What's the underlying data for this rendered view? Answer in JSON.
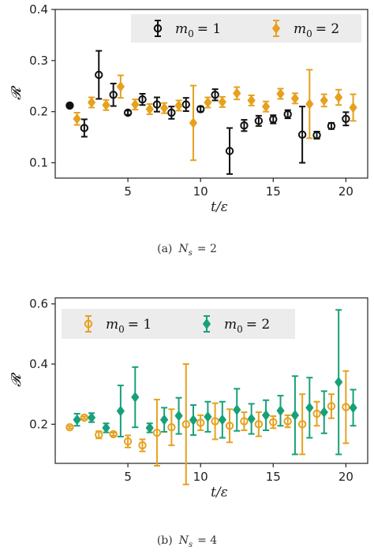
{
  "colors": {
    "black": "#111111",
    "orange": "#e6a11f",
    "green": "#17a07a",
    "axis": "#222222",
    "legend_bg": "#ececec"
  },
  "chart_data": [
    {
      "type": "scatter",
      "caption": "(a)  N_s = 2",
      "caption_prefix": "(a)",
      "caption_var": "N",
      "caption_sub": "s",
      "caption_rest": "= 2",
      "xlabel": "t/ε",
      "ylabel": "𝓡",
      "xlim": [
        0,
        21.5
      ],
      "ylim": [
        0.07,
        0.4
      ],
      "xticks": [
        5,
        10,
        15,
        20
      ],
      "yticks": [
        0.1,
        0.2,
        0.3,
        0.4
      ],
      "ytick_labels": [
        "0.1",
        "0.2",
        "0.3",
        "0.4"
      ],
      "legend_position": "top-right",
      "series": [
        {
          "name": "m₀ = 1",
          "name_sym": "m",
          "name_sub": "0",
          "name_rest": "= 1",
          "color": "#111111",
          "marker": "circle",
          "x": [
            1,
            2,
            3,
            4,
            5,
            6,
            7,
            8,
            9,
            10,
            11,
            12,
            13,
            14,
            15,
            16,
            17,
            18,
            19,
            20
          ],
          "y": [
            0.212,
            0.168,
            0.272,
            0.233,
            0.198,
            0.224,
            0.214,
            0.198,
            0.214,
            0.205,
            0.233,
            0.123,
            0.173,
            0.182,
            0.185,
            0.195,
            0.155,
            0.154,
            0.172,
            0.186
          ],
          "err": [
            0.0,
            0.017,
            0.047,
            0.022,
            0.004,
            0.011,
            0.014,
            0.012,
            0.013,
            0.005,
            0.011,
            0.045,
            0.011,
            0.01,
            0.008,
            0.008,
            0.055,
            0.007,
            0.006,
            0.013
          ]
        },
        {
          "name": "m₀ = 2",
          "name_sym": "m",
          "name_sub": "0",
          "name_rest": "= 2",
          "color": "#e6a11f",
          "marker": "diamond",
          "x": [
            1.5,
            2.5,
            3.5,
            4.5,
            5.5,
            6.5,
            7.5,
            8.5,
            9.5,
            10.5,
            11.5,
            12.5,
            13.5,
            14.5,
            15.5,
            16.5,
            17.5,
            18.5,
            19.5,
            20.5
          ],
          "y": [
            0.186,
            0.218,
            0.213,
            0.249,
            0.214,
            0.205,
            0.207,
            0.212,
            0.178,
            0.218,
            0.219,
            0.236,
            0.222,
            0.21,
            0.235,
            0.226,
            0.215,
            0.222,
            0.228,
            0.208
          ],
          "err": [
            0.012,
            0.01,
            0.01,
            0.022,
            0.01,
            0.01,
            0.01,
            0.01,
            0.073,
            0.01,
            0.01,
            0.012,
            0.01,
            0.01,
            0.01,
            0.01,
            0.067,
            0.012,
            0.015,
            0.026
          ]
        }
      ]
    },
    {
      "type": "scatter",
      "caption": "(b)  N_s = 4",
      "caption_prefix": "(b)",
      "caption_var": "N",
      "caption_sub": "s",
      "caption_rest": "= 4",
      "xlabel": "t/ε",
      "ylabel": "𝓡",
      "xlim": [
        0,
        21.5
      ],
      "ylim": [
        0.07,
        0.62
      ],
      "xticks": [
        5,
        10,
        15,
        20
      ],
      "yticks": [
        0.2,
        0.4,
        0.6
      ],
      "ytick_labels": [
        "0.2",
        "0.4",
        "0.6"
      ],
      "legend_position": "top",
      "series": [
        {
          "name": "m₀ = 1",
          "name_sym": "m",
          "name_sub": "0",
          "name_rest": "= 1",
          "color": "#e6a11f",
          "marker": "circle",
          "x": [
            1,
            2,
            3,
            4,
            5,
            6,
            7,
            8,
            9,
            10,
            11,
            12,
            13,
            14,
            15,
            16,
            17,
            18,
            19,
            20
          ],
          "y": [
            0.19,
            0.222,
            0.165,
            0.167,
            0.143,
            0.13,
            0.172,
            0.19,
            0.2,
            0.205,
            0.21,
            0.195,
            0.21,
            0.2,
            0.207,
            0.21,
            0.2,
            0.235,
            0.26,
            0.257
          ],
          "err": [
            0.004,
            0.004,
            0.012,
            0.005,
            0.02,
            0.02,
            0.11,
            0.06,
            0.2,
            0.025,
            0.06,
            0.055,
            0.03,
            0.04,
            0.02,
            0.02,
            0.1,
            0.04,
            0.04,
            0.12
          ]
        },
        {
          "name": "m₀ = 2",
          "name_sym": "m",
          "name_sub": "0",
          "name_rest": "= 2",
          "color": "#17a07a",
          "marker": "diamond",
          "x": [
            1.5,
            2.5,
            3.5,
            4.5,
            5.5,
            6.5,
            7.5,
            8.5,
            9.5,
            10.5,
            11.5,
            12.5,
            13.5,
            14.5,
            15.5,
            16.5,
            17.5,
            18.5,
            19.5,
            20.5
          ],
          "y": [
            0.215,
            0.222,
            0.188,
            0.244,
            0.29,
            0.188,
            0.215,
            0.228,
            0.214,
            0.225,
            0.215,
            0.248,
            0.218,
            0.23,
            0.245,
            0.23,
            0.255,
            0.24,
            0.34,
            0.255
          ],
          "err": [
            0.02,
            0.015,
            0.015,
            0.085,
            0.1,
            0.015,
            0.04,
            0.06,
            0.05,
            0.05,
            0.06,
            0.07,
            0.05,
            0.05,
            0.05,
            0.13,
            0.1,
            0.07,
            0.24,
            0.06
          ]
        }
      ]
    }
  ]
}
